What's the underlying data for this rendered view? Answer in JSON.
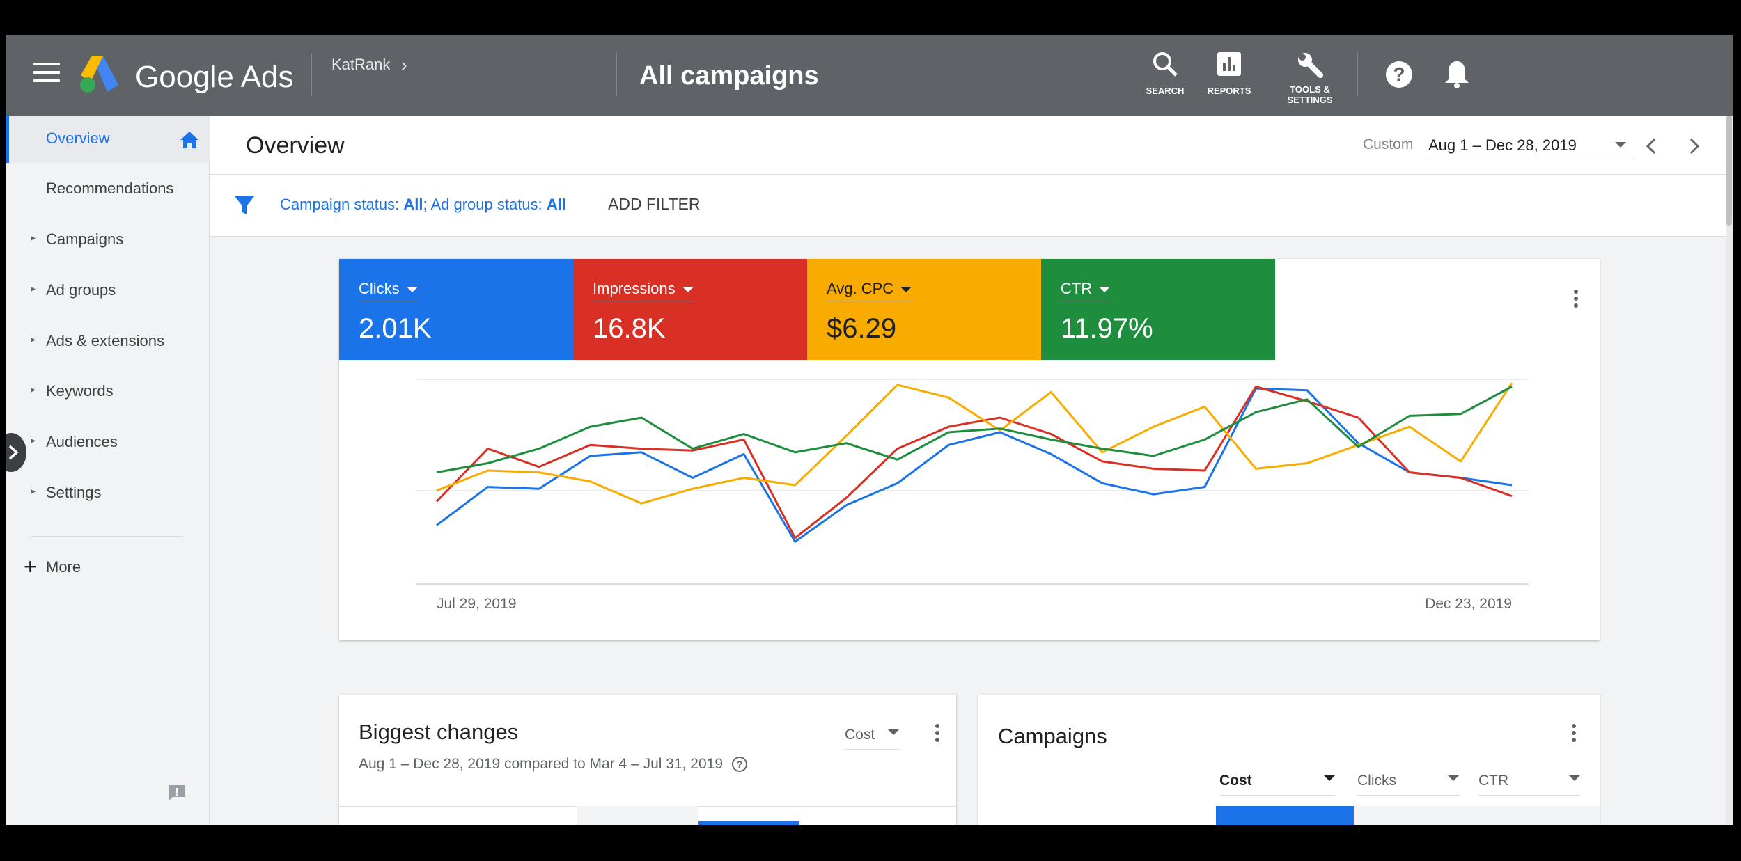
{
  "topbar": {
    "brand": "Google Ads",
    "account": "KatRank",
    "account_chevron": "›",
    "page_title": "All campaigns",
    "tools": [
      {
        "icon": "search-icon",
        "label": "SEARCH"
      },
      {
        "icon": "reports-icon",
        "label": "REPORTS"
      },
      {
        "icon": "wrench-icon",
        "label_line1": "TOOLS &",
        "label_line2": "SETTINGS"
      }
    ],
    "help_icon": "help-icon",
    "notification_icon": "bell-icon"
  },
  "sidebar": {
    "items": [
      {
        "label": "Overview",
        "active": true,
        "icon": "home-icon"
      },
      {
        "label": "Recommendations"
      },
      {
        "label": "Campaigns",
        "expandable": true
      },
      {
        "label": "Ad groups",
        "expandable": true
      },
      {
        "label": "Ads & extensions",
        "expandable": true
      },
      {
        "label": "Keywords",
        "expandable": true
      },
      {
        "label": "Audiences",
        "expandable": true
      },
      {
        "label": "Settings",
        "expandable": true
      }
    ],
    "more_label": "More",
    "feedback_icon": "feedback-icon"
  },
  "header": {
    "title": "Overview",
    "date_mode": "Custom",
    "date_range": "Aug 1 – Dec 28, 2019"
  },
  "filter": {
    "campaign_status_label": "Campaign status:",
    "campaign_status_value": "All",
    "ad_group_status_label": "; Ad group status:",
    "ad_group_status_value": "All",
    "add_filter": "ADD FILTER"
  },
  "metrics": [
    {
      "name": "Clicks",
      "value": "2.01K",
      "color": "#1a73e8"
    },
    {
      "name": "Impressions",
      "value": "16.8K",
      "color": "#d93025"
    },
    {
      "name": "Avg. CPC",
      "value": "$6.29",
      "color": "#f9ab00"
    },
    {
      "name": "CTR",
      "value": "11.97%",
      "color": "#1e8e3e"
    }
  ],
  "chart_data": {
    "type": "line",
    "x_start_label": "Jul 29, 2019",
    "x_end_label": "Dec 23, 2019",
    "grid": true,
    "series": [
      {
        "name": "Clicks",
        "color": "#1a73e8",
        "values": [
          0.2,
          0.41,
          0.4,
          0.58,
          0.6,
          0.46,
          0.59,
          0.11,
          0.31,
          0.43,
          0.64,
          0.71,
          0.59,
          0.43,
          0.37,
          0.41,
          0.95,
          0.94,
          0.65,
          0.49,
          0.46,
          0.42
        ]
      },
      {
        "name": "Impressions",
        "color": "#d93025",
        "values": [
          0.33,
          0.62,
          0.52,
          0.64,
          0.62,
          0.61,
          0.67,
          0.13,
          0.35,
          0.62,
          0.74,
          0.79,
          0.7,
          0.55,
          0.51,
          0.5,
          0.96,
          0.88,
          0.79,
          0.49,
          0.46,
          0.36
        ]
      },
      {
        "name": "Avg. CPC",
        "color": "#f9ab00",
        "values": [
          0.39,
          0.5,
          0.49,
          0.44,
          0.32,
          0.4,
          0.46,
          0.42,
          0.69,
          0.97,
          0.9,
          0.72,
          0.93,
          0.6,
          0.74,
          0.85,
          0.51,
          0.54,
          0.64,
          0.74,
          0.55,
          0.98
        ]
      },
      {
        "name": "CTR",
        "color": "#1e8e3e",
        "values": [
          0.49,
          0.54,
          0.62,
          0.74,
          0.79,
          0.62,
          0.7,
          0.6,
          0.65,
          0.56,
          0.71,
          0.73,
          0.67,
          0.62,
          0.58,
          0.67,
          0.82,
          0.89,
          0.63,
          0.8,
          0.81,
          0.96
        ]
      }
    ]
  },
  "biggest_changes": {
    "title": "Biggest changes",
    "subtitle": "Aug 1 – Dec 28, 2019 compared to Mar 4 – Jul 31, 2019",
    "metric_select": "Cost"
  },
  "campaigns_card": {
    "title": "Campaigns",
    "columns": [
      "Cost",
      "Clicks",
      "CTR"
    ]
  }
}
